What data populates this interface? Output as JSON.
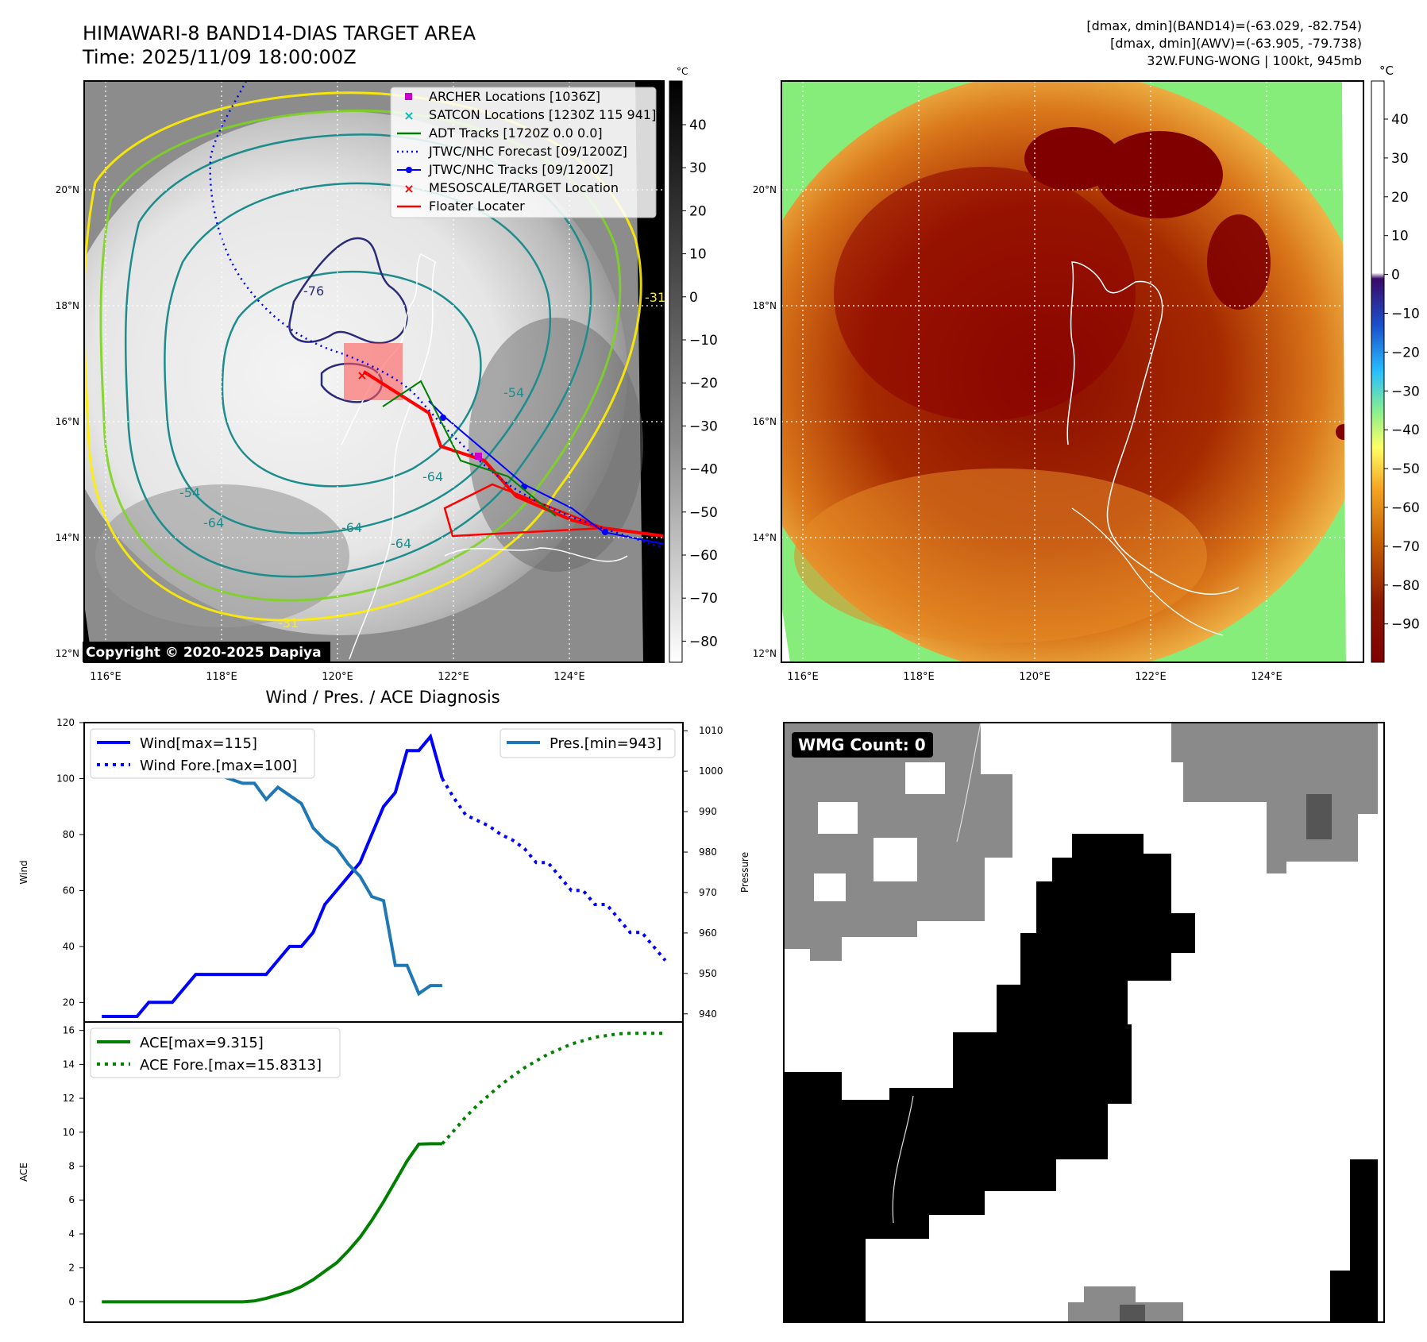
{
  "header": {
    "title_line1": "HIMAWARI-8 BAND14-DIAS TARGET AREA",
    "title_line2": "Time: 2025/11/09 18:00:00Z",
    "info_line1": "[dmax, dmin](BAND14)=(-63.029, -82.754)",
    "info_line2": "[dmax, dmin](AWV)=(-63.905, -79.738)",
    "info_line3": "32W.FUNG-WONG | 100kt, 945mb"
  },
  "map": {
    "lon_labels": [
      "116°E",
      "118°E",
      "120°E",
      "122°E",
      "124°E"
    ],
    "lat_labels": [
      "20°N",
      "18°N",
      "16°N",
      "14°N",
      "12°N"
    ],
    "copyright": "Copyright © 2020-2025 Dapiya",
    "colors": {
      "land_outline": "#ffffff",
      "forecast": "#0000ff",
      "track": "#0000ff",
      "floater": "#ff0000"
    }
  },
  "ir_colorbar": {
    "unit": "°C",
    "ticks": [
      "40",
      "30",
      "20",
      "10",
      "0",
      "−10",
      "−20",
      "−30",
      "−40",
      "−50",
      "−60",
      "−70",
      "−80"
    ]
  },
  "awv_colorbar": {
    "unit": "°C",
    "ticks": [
      "40",
      "30",
      "20",
      "10",
      "0",
      "−10",
      "−20",
      "−30",
      "−40",
      "−50",
      "−60",
      "−70",
      "−80",
      "−90"
    ]
  },
  "map_legend": [
    {
      "label": "ARCHER Locations [1036Z]",
      "kind": "square",
      "color": "#cc00cc"
    },
    {
      "label": "SATCON Locations [1230Z 115 941]",
      "kind": "x",
      "color": "#00bbbb"
    },
    {
      "label": "ADT Tracks [1720Z 0.0 0.0]",
      "kind": "line",
      "color": "#008000"
    },
    {
      "label": "JTWC/NHC Forecast [09/1200Z]",
      "kind": "dotted",
      "color": "#0000ff"
    },
    {
      "label": "JTWC/NHC Tracks [09/1200Z]",
      "kind": "dotline",
      "color": "#0000ff"
    },
    {
      "label": "MESOSCALE/TARGET Location",
      "kind": "x",
      "color": "#ff0000"
    },
    {
      "label": "Floater Locater",
      "kind": "line",
      "color": "#ff0000"
    }
  ],
  "contour_labels": [
    "-76",
    "-64",
    "-54",
    "-64",
    "-64",
    "-54",
    "-64",
    "-31",
    "-31"
  ],
  "diag_title": "Wind / Pres. / ACE Diagnosis",
  "wmg": {
    "label": "WMG Count: 0"
  },
  "chart_data": [
    {
      "type": "line",
      "title": "Wind / Pres. / ACE Diagnosis",
      "ylabel": "Wind",
      "y2label": "Pressure",
      "ylim": [
        13,
        120
      ],
      "y2lim": [
        938,
        1012
      ],
      "yticks": [
        20,
        40,
        60,
        80,
        100,
        120
      ],
      "y2ticks": [
        940,
        950,
        960,
        970,
        980,
        990,
        1000,
        1010
      ],
      "legend_left": [
        "Wind[max=115]",
        "Wind Fore.[max=100]"
      ],
      "legend_right": [
        "Pres.[min=943]"
      ],
      "series": [
        {
          "name": "Wind[max=115]",
          "axis": "left",
          "style": "solid",
          "color": "#0000ff",
          "x": [
            0,
            1,
            2,
            3,
            4,
            5,
            6,
            7,
            8,
            9,
            10,
            11,
            12,
            13,
            14,
            15,
            16,
            17,
            18,
            19,
            20,
            21,
            22,
            23,
            24,
            25,
            26,
            27,
            28,
            29
          ],
          "values": [
            15,
            15,
            15,
            15,
            20,
            20,
            20,
            25,
            30,
            30,
            30,
            30,
            30,
            30,
            30,
            35,
            40,
            40,
            45,
            55,
            60,
            65,
            70,
            80,
            90,
            95,
            110,
            110,
            115,
            100
          ]
        },
        {
          "name": "Wind Fore.[max=100]",
          "axis": "left",
          "style": "dotted",
          "color": "#0000ff",
          "x": [
            29,
            30,
            31,
            32,
            33,
            34,
            35,
            36,
            37,
            38,
            39,
            40,
            41,
            42,
            43,
            44,
            45,
            46,
            47,
            48
          ],
          "values": [
            100,
            93,
            87,
            85,
            83,
            80,
            78,
            75,
            70,
            70,
            65,
            60,
            60,
            55,
            55,
            50,
            45,
            45,
            40,
            35
          ]
        },
        {
          "name": "Pres.[min=943]",
          "axis": "right",
          "style": "solid",
          "color": "#1f77b4",
          "x": [
            0,
            1,
            2,
            3,
            4,
            5,
            6,
            7,
            8,
            9,
            10,
            11,
            12,
            13,
            14,
            15,
            16,
            17,
            18,
            19,
            20,
            21,
            22,
            23,
            24,
            25,
            26,
            27,
            28,
            29
          ],
          "values": [
            1009,
            1006,
            1006,
            1005,
            1004,
            1000,
            1001,
            1001,
            1000,
            999,
            999,
            998,
            997,
            997,
            993,
            996,
            994,
            992,
            986,
            983,
            981,
            977,
            974,
            969,
            968,
            952,
            952,
            945,
            947,
            947
          ]
        }
      ]
    },
    {
      "type": "line",
      "ylabel": "ACE",
      "ylim": [
        -1.2,
        16.5
      ],
      "yticks": [
        0,
        2,
        4,
        6,
        8,
        10,
        12,
        14,
        16
      ],
      "legend": [
        "ACE[max=9.315]",
        "ACE Fore.[max=15.8313]"
      ],
      "series": [
        {
          "name": "ACE[max=9.315]",
          "style": "solid",
          "color": "#008000",
          "x": [
            0,
            1,
            2,
            3,
            4,
            5,
            6,
            7,
            8,
            9,
            10,
            11,
            12,
            13,
            14,
            15,
            16,
            17,
            18,
            19,
            20,
            21,
            22,
            23,
            24,
            25,
            26,
            27,
            28,
            29
          ],
          "values": [
            0,
            0,
            0,
            0,
            0,
            0,
            0,
            0,
            0,
            0,
            0,
            0,
            0,
            0.05,
            0.2,
            0.4,
            0.6,
            0.9,
            1.3,
            1.8,
            2.3,
            3.0,
            3.8,
            4.8,
            5.9,
            7.1,
            8.3,
            9.3,
            9.315,
            9.315
          ]
        },
        {
          "name": "ACE Fore.[max=15.8313]",
          "style": "dotted",
          "color": "#008000",
          "x": [
            29,
            30,
            31,
            32,
            33,
            34,
            35,
            36,
            37,
            38,
            39,
            40,
            41,
            42,
            43,
            44,
            45,
            46,
            47,
            48
          ],
          "values": [
            9.315,
            10.1,
            10.9,
            11.6,
            12.2,
            12.8,
            13.3,
            13.8,
            14.2,
            14.6,
            14.9,
            15.2,
            15.4,
            15.6,
            15.7,
            15.8,
            15.83,
            15.83,
            15.83,
            15.83
          ]
        }
      ]
    }
  ]
}
